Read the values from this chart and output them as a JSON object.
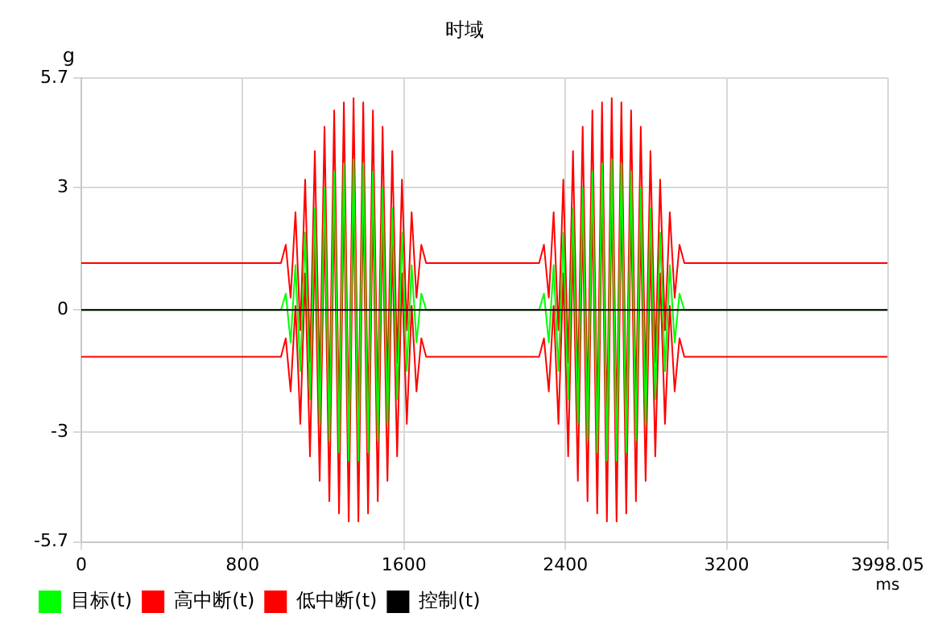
{
  "chart_data": {
    "type": "line",
    "title": "时域",
    "xlabel": "ms",
    "ylabel": "g",
    "x": [
      0,
      990,
      1014,
      1038,
      1062,
      1086,
      1110,
      1134,
      1158,
      1182,
      1206,
      1230,
      1254,
      1278,
      1302,
      1326,
      1350,
      1374,
      1398,
      1422,
      1446,
      1470,
      1494,
      1518,
      1542,
      1566,
      1590,
      1614,
      1638,
      1662,
      1686,
      1710,
      2270,
      2294,
      2318,
      2342,
      2366,
      2390,
      2414,
      2438,
      2462,
      2486,
      2510,
      2534,
      2558,
      2582,
      2606,
      2630,
      2654,
      2678,
      2702,
      2726,
      2750,
      2774,
      2798,
      2822,
      2846,
      2870,
      2894,
      2918,
      2942,
      2966,
      2990,
      3998.05
    ],
    "series": [
      {
        "name": "目标(t)",
        "color": "#00ff00",
        "values": [
          0,
          0,
          0.4,
          -0.8,
          1.1,
          -1.5,
          1.9,
          -2.2,
          2.5,
          -2.8,
          3.0,
          -3.2,
          3.4,
          -3.5,
          3.6,
          -3.7,
          3.7,
          -3.7,
          3.6,
          -3.5,
          3.4,
          -3.2,
          3.0,
          -2.8,
          2.5,
          -2.2,
          1.9,
          -1.5,
          1.1,
          -0.8,
          0.4,
          0,
          0,
          0.4,
          -0.8,
          1.1,
          -1.5,
          1.9,
          -2.2,
          2.5,
          -2.8,
          3.0,
          -3.2,
          3.4,
          -3.5,
          3.6,
          -3.7,
          3.7,
          -3.7,
          3.6,
          -3.5,
          3.4,
          -3.2,
          3.0,
          -2.8,
          2.5,
          -2.2,
          1.9,
          -1.5,
          1.1,
          -0.8,
          0.4,
          0,
          0
        ]
      },
      {
        "name": "高中断(t)",
        "color": "#ff0000",
        "values": [
          1.15,
          1.15,
          1.6,
          0.3,
          2.4,
          -0.5,
          3.2,
          -1.3,
          3.9,
          -1.9,
          4.5,
          -2.4,
          4.9,
          -2.7,
          5.1,
          -2.9,
          5.2,
          -2.9,
          5.1,
          -2.7,
          4.9,
          -2.4,
          4.5,
          -1.9,
          3.9,
          -1.3,
          3.2,
          -0.5,
          2.4,
          0.3,
          1.6,
          1.15,
          1.15,
          1.6,
          0.3,
          2.4,
          -0.5,
          3.2,
          -1.3,
          3.9,
          -1.9,
          4.5,
          -2.4,
          4.9,
          -2.7,
          5.1,
          -2.9,
          5.2,
          -2.9,
          5.1,
          -2.7,
          4.9,
          -2.4,
          4.5,
          -1.9,
          3.9,
          -1.3,
          3.2,
          -0.5,
          2.4,
          0.3,
          1.6,
          1.15,
          1.15
        ]
      },
      {
        "name": "低中断(t)",
        "color": "#ff0000",
        "values": [
          -1.15,
          -1.15,
          -0.7,
          -2.0,
          0.1,
          -2.8,
          0.9,
          -3.6,
          1.6,
          -4.2,
          2.2,
          -4.7,
          2.6,
          -5.0,
          2.8,
          -5.2,
          2.9,
          -5.2,
          2.8,
          -5.0,
          2.6,
          -4.7,
          2.2,
          -4.2,
          1.6,
          -3.6,
          0.9,
          -2.8,
          0.1,
          -2.0,
          -0.7,
          -1.15,
          -1.15,
          -0.7,
          -2.0,
          0.1,
          -2.8,
          0.9,
          -3.6,
          1.6,
          -4.2,
          2.2,
          -4.7,
          2.6,
          -5.0,
          2.8,
          -5.2,
          2.9,
          -5.2,
          2.8,
          -5.0,
          2.6,
          -4.7,
          2.2,
          -4.2,
          1.6,
          -3.6,
          0.9,
          -2.8,
          0.1,
          -2.0,
          -0.7,
          -1.15,
          -1.15
        ]
      },
      {
        "name": "控制(t)",
        "color": "#000000",
        "values": [
          0,
          0,
          0,
          0,
          0,
          0,
          0,
          0,
          0,
          0,
          0,
          0,
          0,
          0,
          0,
          0,
          0,
          0,
          0,
          0,
          0,
          0,
          0,
          0,
          0,
          0,
          0,
          0,
          0,
          0,
          0,
          0,
          0,
          0,
          0,
          0,
          0,
          0,
          0,
          0,
          0,
          0,
          0,
          0,
          0,
          0,
          0,
          0,
          0,
          0,
          0,
          0,
          0,
          0,
          0,
          0,
          0,
          0,
          0,
          0,
          0,
          0,
          0,
          0
        ]
      }
    ],
    "xlim": [
      0,
      3998.05
    ],
    "xticks": [
      0,
      800,
      1600,
      2400,
      3200,
      3998.05
    ],
    "ylim": [
      -5.7,
      5.7
    ],
    "yticks": [
      -5.7,
      -3,
      0,
      3,
      5.7
    ],
    "grid": true,
    "legend": "bottom",
    "marker": "none",
    "line_style": "solid"
  }
}
